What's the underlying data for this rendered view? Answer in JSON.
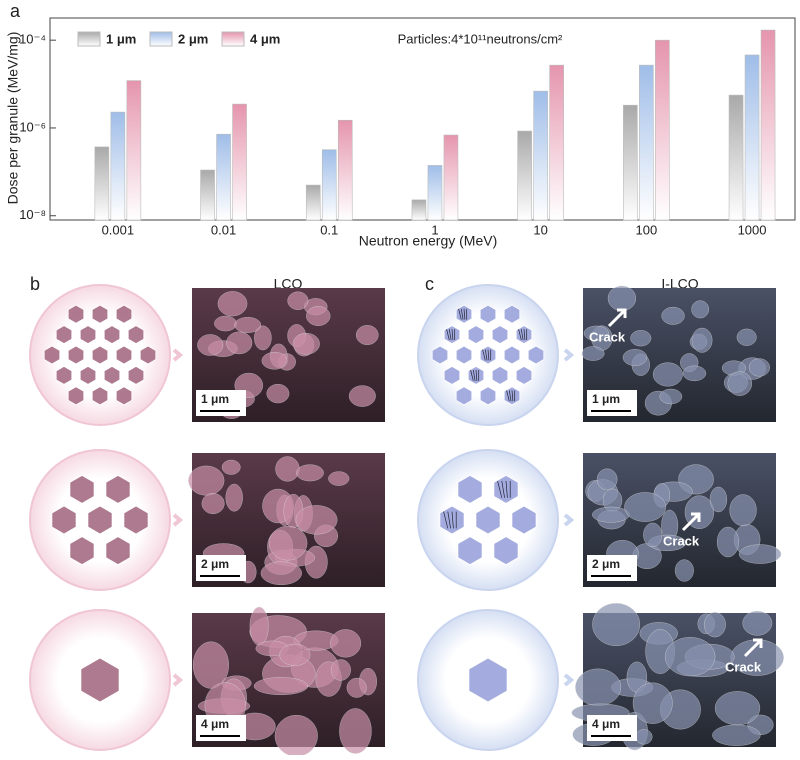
{
  "chart_data": {
    "type": "bar",
    "panel_label": "a",
    "annotation": "Particles:4*10¹¹neutrons/cm²",
    "x_label": "Neutron energy (MeV)",
    "y_label": "Dose per granule (MeV/mg)",
    "categories": [
      "0.001",
      "0.01",
      "0.1",
      "1",
      "10",
      "100",
      "1000"
    ],
    "series": [
      {
        "name": "1 μm",
        "color": "#a9a9a9",
        "values": [
          3.7e-07,
          1.1e-07,
          5e-08,
          2.3e-08,
          8.5e-07,
          3.3e-06,
          5.6e-06
        ]
      },
      {
        "name": "2 μm",
        "color": "#9fbde8",
        "values": [
          2.3e-06,
          7.2e-07,
          3.2e-07,
          1.4e-07,
          6.9e-06,
          2.7e-05,
          4.6e-05
        ]
      },
      {
        "name": "4 μm",
        "color": "#e595ae",
        "values": [
          1.2e-05,
          3.5e-06,
          1.5e-06,
          6.9e-07,
          2.7e-05,
          0.0001,
          0.00017
        ]
      }
    ],
    "yscale": "log",
    "ylim": [
      8e-09,
      0.00032
    ],
    "yticks": [
      {
        "value": 1e-08,
        "label": "10⁻⁸"
      },
      {
        "value": 1e-06,
        "label": "10⁻⁶"
      },
      {
        "value": 0.0001,
        "label": "10⁻⁴"
      }
    ],
    "legend": "top-left"
  },
  "panels": {
    "b": {
      "label": "b",
      "title": "LCO",
      "scale_bars": [
        "1 μm",
        "2 μm",
        "4 μm"
      ]
    },
    "c": {
      "label": "c",
      "title": "I-LCO",
      "scale_bars": [
        "1 μm",
        "2 μm",
        "4 μm"
      ],
      "crack_labels": [
        "Crack",
        "Crack",
        "Crack"
      ]
    }
  }
}
